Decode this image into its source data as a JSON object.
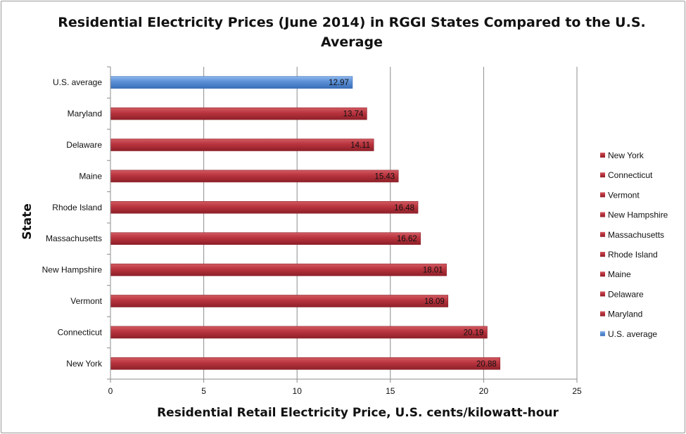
{
  "chart_data": {
    "type": "bar",
    "orientation": "horizontal",
    "title": "Residential Electricity Prices (June 2014) in RGGI States Compared to the U.S. Average",
    "xlabel": "Residential Retail Electricity Price, U.S. cents/kilowatt-hour",
    "ylabel": "State",
    "xlim": [
      0,
      25
    ],
    "xticks": [
      0,
      5,
      10,
      15,
      20,
      25
    ],
    "grid": "vertical",
    "legend_position": "right",
    "categories": [
      "U.S. average",
      "Maryland",
      "Delaware",
      "Maine",
      "Rhode Island",
      "Massachusetts",
      "New Hampshire",
      "Vermont",
      "Connecticut",
      "New York"
    ],
    "values": [
      12.97,
      13.74,
      14.11,
      15.43,
      16.48,
      16.62,
      18.01,
      18.09,
      20.19,
      20.88
    ],
    "data_labels": [
      "12.97",
      "13.74",
      "14.11",
      "15.43",
      "16.48",
      "16.62",
      "18.01",
      "18.09",
      "20.19",
      "20.88"
    ],
    "colors": [
      "#5a8fd6",
      "#b8333d",
      "#b8333d",
      "#b8333d",
      "#b8333d",
      "#b8333d",
      "#b8333d",
      "#b8333d",
      "#b8333d",
      "#b8333d"
    ],
    "legend": [
      {
        "label": "New York",
        "color": "#b8333d"
      },
      {
        "label": "Connecticut",
        "color": "#b8333d"
      },
      {
        "label": "Vermont",
        "color": "#b8333d"
      },
      {
        "label": "New Hampshire",
        "color": "#b8333d"
      },
      {
        "label": "Massachusetts",
        "color": "#b8333d"
      },
      {
        "label": "Rhode Island",
        "color": "#b8333d"
      },
      {
        "label": "Maine",
        "color": "#b8333d"
      },
      {
        "label": "Delaware",
        "color": "#b8333d"
      },
      {
        "label": "Maryland",
        "color": "#b8333d"
      },
      {
        "label": "U.S. average",
        "color": "#5a8fd6"
      }
    ]
  }
}
